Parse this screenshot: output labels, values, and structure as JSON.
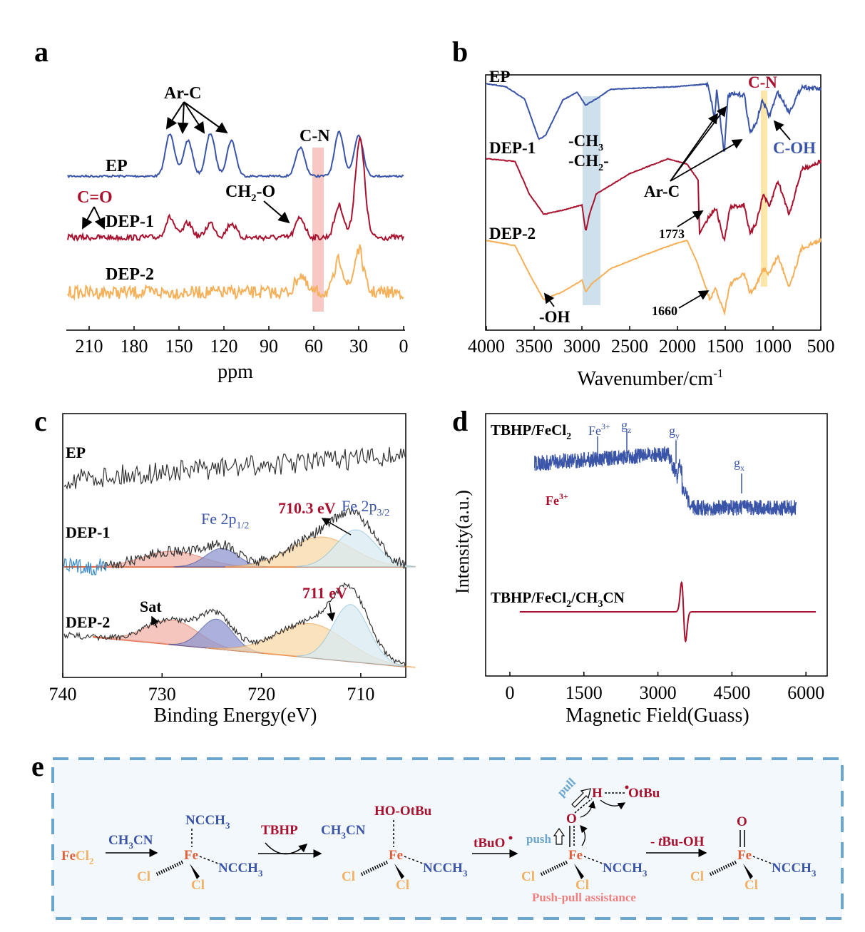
{
  "panels": {
    "a": "a",
    "b": "b",
    "c": "c",
    "d": "d",
    "e": "e"
  },
  "colors": {
    "ep": "#3a54a8",
    "dep1": "#a8122f",
    "dep2": "#f5b05a",
    "xps": "#333333",
    "cn_band_a": "#f4b5b0",
    "ch_band_b": "#b9d3e2",
    "cn_band_b": "#fde29a",
    "scheme_border": "#6aa6cf",
    "scheme_bg": "#f3f8fc"
  },
  "chart_data": [
    {
      "panel": "a",
      "type": "line",
      "xlabel": "ppm",
      "xlim": [
        225,
        0
      ],
      "xticks": [
        210,
        180,
        150,
        120,
        90,
        60,
        30,
        0
      ],
      "series": [
        {
          "name": "EP",
          "color": "#3a54a8",
          "peaks_ppm": [
            156,
            144,
            129,
            115,
            69,
            43,
            30
          ],
          "peak_heights": [
            60,
            50,
            60,
            50,
            40,
            62,
            58
          ]
        },
        {
          "name": "DEP-1",
          "color": "#a8122f",
          "peaks_ppm": [
            156,
            144,
            129,
            115,
            69,
            43,
            30,
            28
          ],
          "peak_heights": [
            28,
            20,
            20,
            20,
            28,
            45,
            85,
            60
          ]
        },
        {
          "name": "DEP-2",
          "color": "#f5b05a",
          "peaks_ppm": [
            69,
            43,
            30
          ],
          "peak_heights": [
            25,
            45,
            60
          ]
        }
      ],
      "annotations": [
        "Ar-C",
        "C-N",
        "C=O",
        "CH2-O"
      ],
      "highlight_ppm": [
        62,
        55
      ]
    },
    {
      "panel": "b",
      "type": "line",
      "xlabel": "Wavenumber/cm-1",
      "xlim": [
        4000,
        500
      ],
      "xticks": [
        4000,
        3500,
        3000,
        2500,
        2000,
        1500,
        1000,
        500
      ],
      "series": [
        {
          "name": "EP",
          "color": "#3a54a8",
          "points": [
            [
              4000,
              96
            ],
            [
              3800,
              94
            ],
            [
              3600,
              85
            ],
            [
              3450,
              55
            ],
            [
              3380,
              58
            ],
            [
              3200,
              84
            ],
            [
              3050,
              90
            ],
            [
              2960,
              80
            ],
            [
              2920,
              82
            ],
            [
              2870,
              84
            ],
            [
              2700,
              92
            ],
            [
              2000,
              94
            ],
            [
              1680,
              96
            ],
            [
              1610,
              70
            ],
            [
              1590,
              92
            ],
            [
              1510,
              45
            ],
            [
              1470,
              88
            ],
            [
              1300,
              88
            ],
            [
              1240,
              60
            ],
            [
              1180,
              66
            ],
            [
              1110,
              84
            ],
            [
              1040,
              72
            ],
            [
              950,
              90
            ],
            [
              830,
              75
            ],
            [
              700,
              94
            ],
            [
              500,
              92
            ]
          ]
        },
        {
          "name": "DEP-1",
          "color": "#a8122f",
          "points": [
            [
              4000,
              96
            ],
            [
              3700,
              94
            ],
            [
              3550,
              70
            ],
            [
              3400,
              55
            ],
            [
              3200,
              58
            ],
            [
              3000,
              62
            ],
            [
              2960,
              42
            ],
            [
              2920,
              55
            ],
            [
              2850,
              70
            ],
            [
              2500,
              85
            ],
            [
              2100,
              96
            ],
            [
              1900,
              92
            ],
            [
              1780,
              80
            ],
            [
              1773,
              40
            ],
            [
              1700,
              50
            ],
            [
              1600,
              60
            ],
            [
              1510,
              35
            ],
            [
              1450,
              60
            ],
            [
              1300,
              62
            ],
            [
              1240,
              40
            ],
            [
              1180,
              48
            ],
            [
              1100,
              70
            ],
            [
              1040,
              60
            ],
            [
              950,
              80
            ],
            [
              830,
              55
            ],
            [
              700,
              88
            ],
            [
              500,
              94
            ]
          ]
        },
        {
          "name": "DEP-2",
          "color": "#f5b05a",
          "points": [
            [
              4000,
              96
            ],
            [
              3700,
              92
            ],
            [
              3550,
              70
            ],
            [
              3400,
              50
            ],
            [
              3200,
              56
            ],
            [
              3000,
              65
            ],
            [
              2960,
              56
            ],
            [
              2900,
              62
            ],
            [
              2700,
              74
            ],
            [
              2300,
              86
            ],
            [
              2000,
              94
            ],
            [
              1900,
              96
            ],
            [
              1800,
              80
            ],
            [
              1660,
              50
            ],
            [
              1600,
              58
            ],
            [
              1510,
              40
            ],
            [
              1450,
              62
            ],
            [
              1300,
              70
            ],
            [
              1240,
              55
            ],
            [
              1180,
              60
            ],
            [
              1100,
              74
            ],
            [
              1040,
              70
            ],
            [
              950,
              84
            ],
            [
              830,
              60
            ],
            [
              700,
              90
            ],
            [
              500,
              96
            ]
          ]
        }
      ],
      "annotations": [
        "-CH3",
        "-CH2-",
        "Ar-C",
        "1773",
        "1660",
        "-OH",
        "C-N",
        "C-OH"
      ]
    },
    {
      "panel": "c",
      "type": "line",
      "xlabel": "Binding Energy(eV)",
      "xlim": [
        740,
        705
      ],
      "xticks": [
        740,
        730,
        720,
        710
      ],
      "series": [
        {
          "name": "EP",
          "color": "#333333"
        },
        {
          "name": "DEP-1",
          "color": "#333333",
          "components_eV": [
            728.5,
            724,
            715,
            710.3
          ],
          "labels": [
            "Fe 2p1/2",
            "710.3 eV",
            "Fe 2p3/2"
          ]
        },
        {
          "name": "DEP-2",
          "color": "#333333",
          "components_eV": [
            729,
            724.5,
            715,
            711
          ],
          "labels": [
            "Sat",
            "711 eV"
          ]
        }
      ]
    },
    {
      "panel": "d",
      "type": "line",
      "xlabel": "Magnetic Field(Guass)",
      "ylabel": "Intensity(a.u.)",
      "xlim": [
        -800,
        6300
      ],
      "xticks": [
        0,
        1500,
        3000,
        4500,
        6000
      ],
      "series": [
        {
          "name": "TBHP/FeCl2",
          "color": "#3a54a8",
          "range_G": [
            500,
            5800
          ],
          "transition_G": 3400
        },
        {
          "name": "TBHP/FeCl2/CH3CN",
          "color": "#a8122f",
          "range_G": [
            200,
            6200
          ],
          "signal_G": 3520
        }
      ],
      "annotations": [
        "Fe3+",
        "gz",
        "gy",
        "gx",
        "Fe3+"
      ]
    }
  ],
  "labels": {
    "a": {
      "ep": "EP",
      "dep1": "DEP-1",
      "dep2": "DEP-2",
      "arc": "Ar-C",
      "cn": "C-N",
      "co": "C=O",
      "ch2o": "CH",
      "ch2o_sub": "2",
      "ch2o_end": "-O",
      "x": "ppm",
      "ticks": [
        "210",
        "180",
        "150",
        "120",
        "90",
        "60",
        "30",
        "0"
      ]
    },
    "b": {
      "ep": "EP",
      "dep1": "DEP-1",
      "dep2": "DEP-2",
      "ch3": "-CH",
      "ch3_sub": "3",
      "ch2": "-CH",
      "ch2_sub": "2",
      "ch2_end": "-",
      "arc": "Ar-C",
      "w1773": "1773",
      "w1660": "1660",
      "oh": "-OH",
      "cn": "C-N",
      "coh": "C-OH",
      "x": "Wavenumber/cm",
      "x_sup": "-1",
      "ticks": [
        "4000",
        "3500",
        "3000",
        "2500",
        "2000",
        "1500",
        "1000",
        "500"
      ]
    },
    "c": {
      "ep": "EP",
      "dep1": "DEP-1",
      "dep2": "DEP-2",
      "fe12": "Fe 2p",
      "fe12_sub": "1/2",
      "fe32": "Fe 2p",
      "fe32_sub": "3/2",
      "e7103": "710.3 eV",
      "e711": "711 eV",
      "sat": "Sat",
      "x": "Binding Energy(eV)",
      "ticks": [
        "740",
        "730",
        "720",
        "710"
      ]
    },
    "d": {
      "s1": "TBHP/FeCl",
      "s1_sub": "2",
      "fe3a": "Fe",
      "fe3_sup": "3+",
      "gz": "g",
      "gz_sub": "z",
      "gy": "g",
      "gy_sub": "y",
      "gx": "g",
      "gx_sub": "x",
      "fe3b": "Fe",
      "s2a": "TBHP/FeCl",
      "s2b": "/CH",
      "s2c": "CN",
      "sub2": "2",
      "sub3": "3",
      "y": "Intensity(a.u.)",
      "x": "Magnetic Field(Guass)",
      "ticks": [
        "0",
        "1500",
        "3000",
        "4500",
        "6000"
      ]
    },
    "e": {
      "fe": "Fe",
      "cl": "Cl",
      "fecl2_sub": "2",
      "ch3cn1": "CH",
      "ch3cn_end": "CN",
      "sub3": "3",
      "ncch": "NCCH",
      "tbhp": "TBHP",
      "hootbu": "HO-OtBu",
      "tbuo": "tBuO",
      "tbuoh_pre": "- ",
      "tbuoh_t": "t",
      "tbuoh": "Bu-OH",
      "push": "push",
      "pull": "pull",
      "h": "H",
      "otbu": "OtBu",
      "o": "O",
      "pushpull": "Push-pull assistance"
    }
  }
}
